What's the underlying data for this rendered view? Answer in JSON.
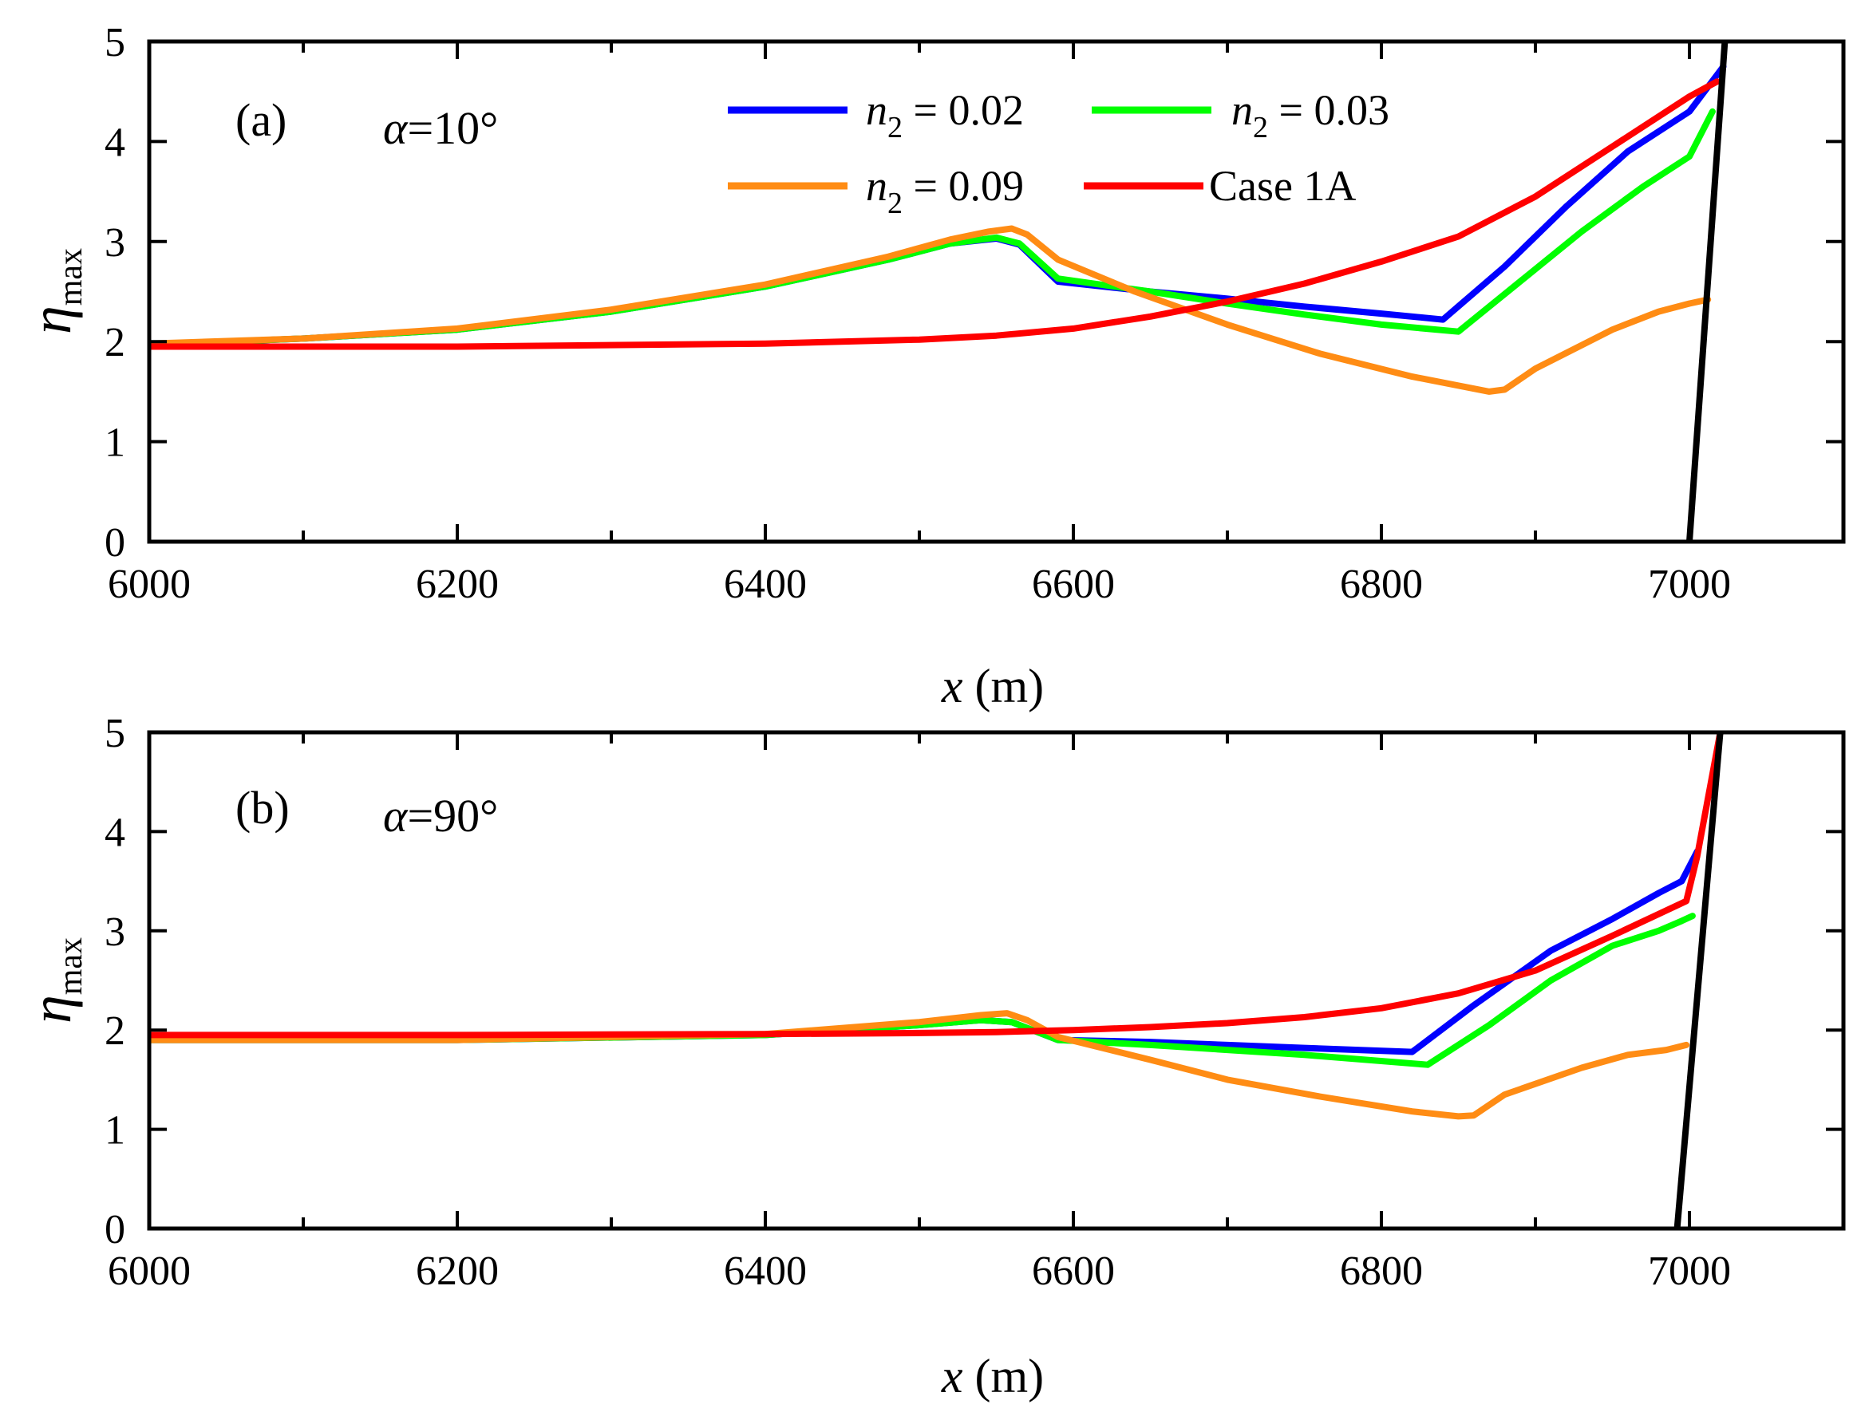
{
  "chart_data": [
    {
      "type": "line",
      "panel": "(a)",
      "annotation": "α=10°",
      "annotation_symbol": "α",
      "annotation_value": "=10°",
      "xlabel": "x (m)",
      "xlabel_var": "x",
      "xlabel_unit": " (m)",
      "ylabel": "ηmax",
      "ylabel_symbol": "η",
      "ylabel_sub": "max",
      "xlim": [
        6000,
        7100
      ],
      "ylim": [
        0,
        5
      ],
      "xticks": [
        6000,
        6200,
        6400,
        6600,
        6800,
        7000
      ],
      "yticks": [
        0,
        1,
        2,
        3,
        4,
        5
      ],
      "grid": false,
      "legend_position": "top-center",
      "series": [
        {
          "name": "n2 = 0.02",
          "label_var": "n",
          "label_sub": "2",
          "label_value": " = 0.02",
          "color": "#0000ff",
          "x": [
            6000,
            6100,
            6200,
            6300,
            6400,
            6480,
            6520,
            6550,
            6565,
            6590,
            6650,
            6700,
            6750,
            6800,
            6840,
            6880,
            6920,
            6960,
            7000,
            7022
          ],
          "y": [
            1.97,
            2.03,
            2.12,
            2.3,
            2.55,
            2.82,
            2.98,
            3.03,
            2.97,
            2.6,
            2.5,
            2.43,
            2.35,
            2.28,
            2.22,
            2.75,
            3.35,
            3.9,
            4.3,
            4.75
          ]
        },
        {
          "name": "n2 = 0.03",
          "label_var": "n",
          "label_sub": "2",
          "label_value": " = 0.03",
          "color": "#00ff00",
          "x": [
            6000,
            6100,
            6200,
            6300,
            6400,
            6480,
            6520,
            6550,
            6565,
            6590,
            6650,
            6700,
            6750,
            6800,
            6850,
            6890,
            6930,
            6970,
            7000,
            7015
          ],
          "y": [
            1.97,
            2.03,
            2.12,
            2.3,
            2.55,
            2.82,
            2.98,
            3.04,
            2.98,
            2.63,
            2.5,
            2.38,
            2.27,
            2.17,
            2.1,
            2.6,
            3.1,
            3.55,
            3.85,
            4.3
          ]
        },
        {
          "name": "n2 = 0.09",
          "label_var": "n",
          "label_sub": "2",
          "label_value": " = 0.09",
          "color": "#ff8c14",
          "x": [
            6000,
            6100,
            6200,
            6300,
            6400,
            6480,
            6520,
            6545,
            6560,
            6570,
            6590,
            6640,
            6700,
            6760,
            6820,
            6870,
            6880,
            6900,
            6950,
            6980,
            7000,
            7012
          ],
          "y": [
            1.98,
            2.03,
            2.13,
            2.32,
            2.57,
            2.85,
            3.02,
            3.1,
            3.13,
            3.07,
            2.82,
            2.5,
            2.17,
            1.88,
            1.65,
            1.5,
            1.52,
            1.73,
            2.12,
            2.3,
            2.38,
            2.42
          ]
        },
        {
          "name": "Case 1A",
          "label_var": "",
          "label_sub": "",
          "label_value": "Case 1A",
          "color": "#ff0000",
          "x": [
            6000,
            6200,
            6400,
            6500,
            6550,
            6600,
            6650,
            6700,
            6750,
            6800,
            6850,
            6900,
            6950,
            7000,
            7018
          ],
          "y": [
            1.95,
            1.95,
            1.98,
            2.02,
            2.06,
            2.13,
            2.25,
            2.4,
            2.58,
            2.8,
            3.05,
            3.45,
            3.95,
            4.45,
            4.6
          ]
        },
        {
          "name": "slope",
          "role": "bathymetry",
          "color": "#000000",
          "x": [
            7000,
            7023
          ],
          "y": [
            0,
            5
          ]
        }
      ]
    },
    {
      "type": "line",
      "panel": "(b)",
      "annotation": "α=90°",
      "annotation_symbol": "α",
      "annotation_value": "=90°",
      "xlabel": "x (m)",
      "xlabel_var": "x",
      "xlabel_unit": " (m)",
      "ylabel": "ηmax",
      "ylabel_symbol": "η",
      "ylabel_sub": "max",
      "xlim": [
        6000,
        7100
      ],
      "ylim": [
        0,
        5
      ],
      "xticks": [
        6000,
        6200,
        6400,
        6600,
        6800,
        7000
      ],
      "yticks": [
        0,
        1,
        2,
        3,
        4,
        5
      ],
      "grid": false,
      "series": [
        {
          "name": "n2 = 0.02",
          "color": "#0000ff",
          "x": [
            6000,
            6200,
            6400,
            6500,
            6540,
            6560,
            6590,
            6650,
            6700,
            6750,
            6820,
            6860,
            6910,
            6950,
            6980,
            6995,
            7005
          ],
          "y": [
            1.9,
            1.9,
            1.95,
            2.05,
            2.1,
            2.08,
            1.9,
            1.88,
            1.85,
            1.82,
            1.78,
            2.25,
            2.8,
            3.12,
            3.38,
            3.5,
            3.8
          ]
        },
        {
          "name": "n2 = 0.03",
          "color": "#00ff00",
          "x": [
            6000,
            6200,
            6400,
            6500,
            6540,
            6560,
            6590,
            6650,
            6700,
            6750,
            6830,
            6870,
            6910,
            6950,
            6980,
            6995,
            7002
          ],
          "y": [
            1.9,
            1.9,
            1.95,
            2.05,
            2.1,
            2.08,
            1.9,
            1.85,
            1.8,
            1.75,
            1.65,
            2.05,
            2.5,
            2.85,
            3.0,
            3.1,
            3.15
          ]
        },
        {
          "name": "n2 = 0.09",
          "color": "#ff8c14",
          "x": [
            6000,
            6200,
            6400,
            6500,
            6540,
            6557,
            6570,
            6590,
            6650,
            6700,
            6760,
            6820,
            6850,
            6860,
            6880,
            6930,
            6960,
            6985,
            6998
          ],
          "y": [
            1.9,
            1.9,
            1.96,
            2.08,
            2.15,
            2.17,
            2.1,
            1.93,
            1.7,
            1.5,
            1.33,
            1.18,
            1.13,
            1.14,
            1.35,
            1.62,
            1.75,
            1.8,
            1.85
          ]
        },
        {
          "name": "Case 1A",
          "color": "#ff0000",
          "x": [
            6000,
            6200,
            6400,
            6500,
            6550,
            6600,
            6650,
            6700,
            6750,
            6800,
            6850,
            6900,
            6950,
            6998,
            7005,
            7020
          ],
          "y": [
            1.95,
            1.95,
            1.96,
            1.97,
            1.98,
            2.0,
            2.03,
            2.07,
            2.13,
            2.22,
            2.37,
            2.6,
            2.95,
            3.3,
            3.75,
            5.0
          ]
        },
        {
          "name": "slope",
          "role": "bathymetry",
          "color": "#000000",
          "x": [
            6992,
            7020
          ],
          "y": [
            0,
            5
          ]
        }
      ]
    }
  ]
}
